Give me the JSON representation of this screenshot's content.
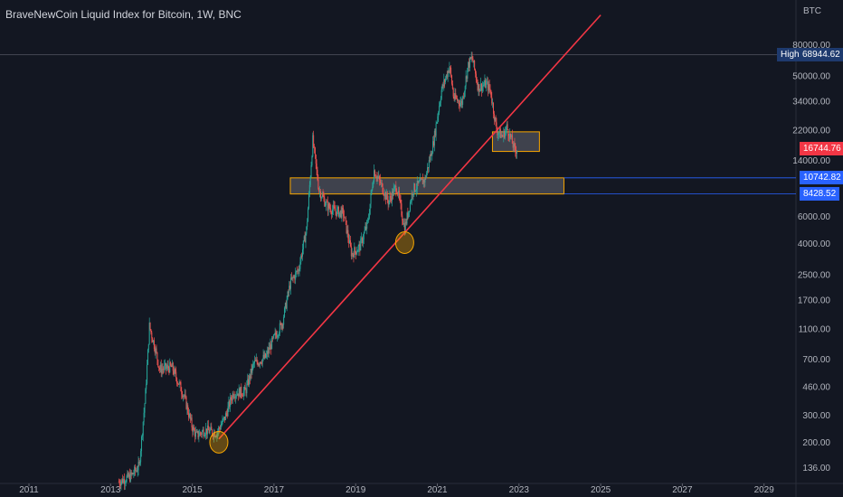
{
  "header": {
    "title": "BraveNewCoin Liquid Index for Bitcoin, 1W, BNC",
    "currency": "BTC"
  },
  "colors": {
    "background": "#131722",
    "up": "#26a69a",
    "down": "#ef5350",
    "trendline": "#f23645",
    "zone": "#f7a600",
    "price_tag": "#f23645",
    "level_tag": "#2962ff",
    "high_tag": "#1e3a6e"
  },
  "labels": {
    "high_label": "High",
    "high_value": "68944.62",
    "last_price": "16744.76",
    "level1": "10742.82",
    "level2": "8428.52"
  },
  "chart_data": {
    "type": "candlestick",
    "title": "BraveNewCoin Liquid Index for Bitcoin, 1W, BNC",
    "y_scale": "log",
    "ylim": [
      130,
      110000
    ],
    "xlim": [
      2011,
      2030.5
    ],
    "y_ticks": [
      "80000.00",
      "50000.00",
      "34000.00",
      "22000.00",
      "14000.00",
      "6000.00",
      "4000.00",
      "2500.00",
      "1700.00",
      "1100.00",
      "700.00",
      "460.00",
      "300.00",
      "200.00",
      "136.00"
    ],
    "x_ticks": [
      "2011",
      "2013",
      "2015",
      "2017",
      "2019",
      "2021",
      "2023",
      "2025",
      "2027",
      "2029"
    ],
    "price_path": [
      [
        2013.2,
        110
      ],
      [
        2013.5,
        120
      ],
      [
        2013.7,
        140
      ],
      [
        2013.85,
        400
      ],
      [
        2013.95,
        1150
      ],
      [
        2014.1,
        800
      ],
      [
        2014.2,
        600
      ],
      [
        2014.5,
        620
      ],
      [
        2014.8,
        400
      ],
      [
        2015.0,
        250
      ],
      [
        2015.1,
        220
      ],
      [
        2015.3,
        240
      ],
      [
        2015.6,
        230
      ],
      [
        2015.8,
        290
      ],
      [
        2016.0,
        420
      ],
      [
        2016.3,
        430
      ],
      [
        2016.5,
        650
      ],
      [
        2016.8,
        720
      ],
      [
        2017.0,
        960
      ],
      [
        2017.2,
        1200
      ],
      [
        2017.4,
        2200
      ],
      [
        2017.6,
        2700
      ],
      [
        2017.8,
        5000
      ],
      [
        2017.95,
        19000
      ],
      [
        2018.1,
        9000
      ],
      [
        2018.3,
        7000
      ],
      [
        2018.5,
        6500
      ],
      [
        2018.7,
        6300
      ],
      [
        2018.9,
        3400
      ],
      [
        2019.1,
        3800
      ],
      [
        2019.3,
        5500
      ],
      [
        2019.45,
        12000
      ],
      [
        2019.6,
        10000
      ],
      [
        2019.8,
        7500
      ],
      [
        2020.0,
        9500
      ],
      [
        2020.2,
        5000
      ],
      [
        2020.4,
        9000
      ],
      [
        2020.7,
        10500
      ],
      [
        2020.9,
        18000
      ],
      [
        2021.1,
        40000
      ],
      [
        2021.3,
        58000
      ],
      [
        2021.4,
        36000
      ],
      [
        2021.6,
        33000
      ],
      [
        2021.75,
        58000
      ],
      [
        2021.85,
        66000
      ],
      [
        2022.0,
        42000
      ],
      [
        2022.2,
        44000
      ],
      [
        2022.3,
        40000
      ],
      [
        2022.45,
        22000
      ],
      [
        2022.6,
        20000
      ],
      [
        2022.7,
        23000
      ],
      [
        2022.8,
        19500
      ],
      [
        2022.9,
        16000
      ],
      [
        2022.95,
        16744.76
      ]
    ],
    "annotations": [
      {
        "type": "trendline",
        "from": [
          2015.65,
          210
        ],
        "to": [
          2025.0,
          125000
        ]
      },
      {
        "type": "zone",
        "x": [
          2017.4,
          2024.1
        ],
        "y": [
          8428.52,
          10742.82
        ]
      },
      {
        "type": "zone",
        "x": [
          2022.35,
          2023.5
        ],
        "y": [
          16000,
          21500
        ]
      },
      {
        "type": "circle",
        "x": 2015.65,
        "y": 200
      },
      {
        "type": "circle",
        "x": 2020.2,
        "y": 4050
      }
    ]
  }
}
